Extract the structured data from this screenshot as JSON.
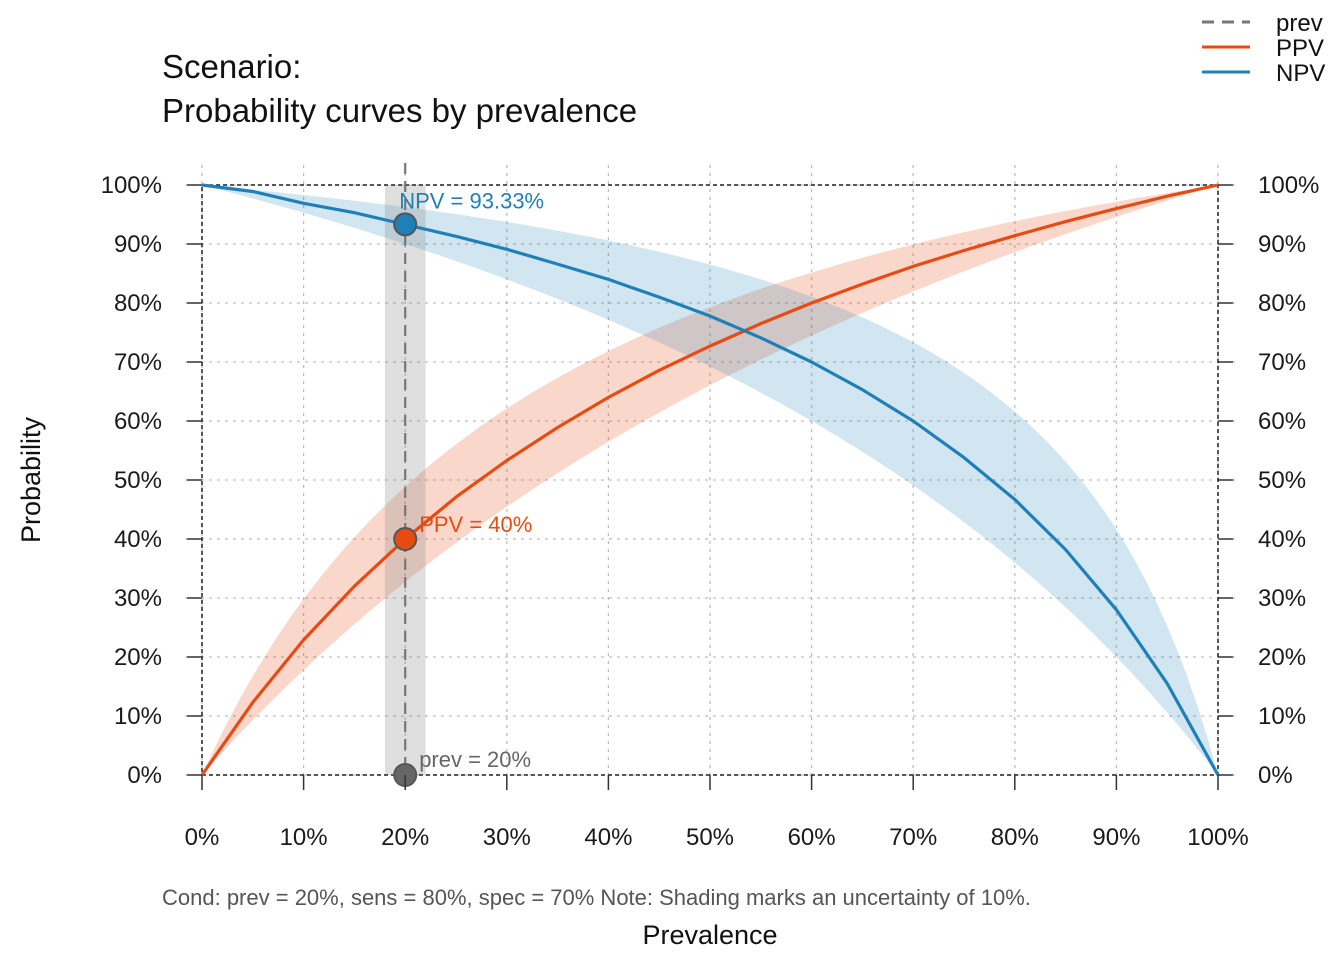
{
  "chart_data": {
    "type": "line",
    "title_line1": "Scenario:",
    "title_line2": "Probability curves by prevalence",
    "xlabel": "Prevalence",
    "ylabel": "Probability",
    "xlim": [
      0,
      1
    ],
    "ylim": [
      0,
      1
    ],
    "x_ticks": [
      "0%",
      "10%",
      "20%",
      "30%",
      "40%",
      "50%",
      "60%",
      "70%",
      "80%",
      "90%",
      "100%"
    ],
    "y_ticks": [
      "0%",
      "10%",
      "20%",
      "30%",
      "40%",
      "50%",
      "60%",
      "70%",
      "80%",
      "90%",
      "100%"
    ],
    "grid": true,
    "legend_position": "top-right",
    "legend": [
      {
        "name": "prev",
        "style": "dashed",
        "color": "#777777"
      },
      {
        "name": "PPV",
        "style": "solid",
        "color": "#E84B12"
      },
      {
        "name": "NPV",
        "style": "solid",
        "color": "#1F80B8"
      }
    ],
    "conditions": {
      "prev": 0.2,
      "sens": 0.8,
      "spec": 0.7,
      "uncertainty": 0.1
    },
    "series": [
      {
        "name": "PPV",
        "color": "#E84B12",
        "x": [
          0,
          0.05,
          0.1,
          0.15,
          0.2,
          0.25,
          0.3,
          0.35,
          0.4,
          0.45,
          0.5,
          0.55,
          0.6,
          0.65,
          0.7,
          0.75,
          0.8,
          0.85,
          0.9,
          0.95,
          1.0
        ],
        "y": [
          0,
          0.123,
          0.229,
          0.32,
          0.4,
          0.471,
          0.533,
          0.589,
          0.64,
          0.686,
          0.727,
          0.765,
          0.8,
          0.832,
          0.862,
          0.889,
          0.914,
          0.938,
          0.96,
          0.981,
          1.0
        ]
      },
      {
        "name": "NPV",
        "color": "#1F80B8",
        "x": [
          0,
          0.05,
          0.1,
          0.15,
          0.2,
          0.25,
          0.3,
          0.35,
          0.4,
          0.45,
          0.5,
          0.55,
          0.6,
          0.65,
          0.7,
          0.75,
          0.8,
          0.85,
          0.9,
          0.95,
          1.0
        ],
        "y": [
          1.0,
          0.989,
          0.969,
          0.953,
          0.933,
          0.913,
          0.891,
          0.866,
          0.84,
          0.81,
          0.778,
          0.741,
          0.7,
          0.653,
          0.6,
          0.538,
          0.467,
          0.382,
          0.28,
          0.155,
          0
        ]
      }
    ],
    "highlights": [
      {
        "name": "prev",
        "x": 0.2,
        "y": 0,
        "label": "prev = 20%",
        "color": "#666666"
      },
      {
        "name": "PPV",
        "x": 0.2,
        "y": 0.4,
        "label": "PPV = 40%",
        "color": "#E84B12"
      },
      {
        "name": "NPV",
        "x": 0.2,
        "y": 0.9333,
        "label": "NPV = 93.33%",
        "color": "#1F80B8"
      }
    ],
    "caption": "Cond:  prev = 20%, sens = 80%, spec = 70%  Note:  Shading marks an uncertainty of 10%."
  }
}
